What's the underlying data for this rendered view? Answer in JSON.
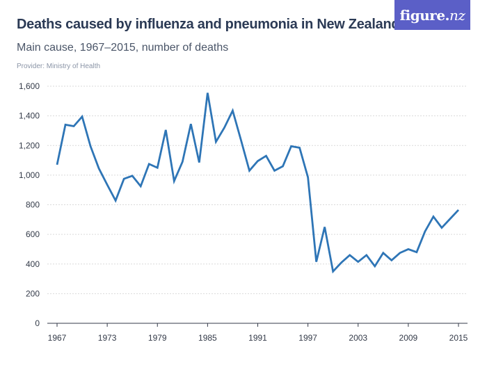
{
  "header": {
    "title": "Deaths caused by influenza and pneumonia in New Zealand",
    "subtitle": "Main cause, 1967–2015, number of deaths",
    "provider": "Provider: Ministry of Health"
  },
  "logo": {
    "text_main": "figure.",
    "text_tail": "nz",
    "background": "#5b5fc7"
  },
  "colors": {
    "line": "#2e75b6",
    "grid": "#d9d9d9",
    "axis": "#333a48"
  },
  "chart_data": {
    "type": "line",
    "title": "Deaths caused by influenza and pneumonia in New Zealand",
    "subtitle": "Main cause, 1967–2015, number of deaths",
    "xlabel": "",
    "ylabel": "",
    "ylim": [
      0,
      1600
    ],
    "xlim": [
      1967,
      2015
    ],
    "yticks": [
      0,
      200,
      400,
      600,
      800,
      1000,
      1200,
      1400,
      1600
    ],
    "ytick_labels": [
      "0",
      "200",
      "400",
      "600",
      "800",
      "1,000",
      "1,200",
      "1,400",
      "1,600"
    ],
    "xticks": [
      1967,
      1973,
      1979,
      1985,
      1991,
      1997,
      2003,
      2009,
      2015
    ],
    "xtick_labels": [
      "1967",
      "1973",
      "1979",
      "1985",
      "1991",
      "1997",
      "2003",
      "2009",
      "2015"
    ],
    "grid": true,
    "legend": "none",
    "x": [
      1967,
      1968,
      1969,
      1970,
      1971,
      1972,
      1973,
      1974,
      1975,
      1976,
      1977,
      1978,
      1979,
      1980,
      1981,
      1982,
      1983,
      1984,
      1985,
      1986,
      1987,
      1988,
      1989,
      1990,
      1991,
      1992,
      1993,
      1994,
      1995,
      1996,
      1997,
      1998,
      1999,
      2000,
      2001,
      2002,
      2003,
      2004,
      2005,
      2006,
      2007,
      2008,
      2009,
      2010,
      2011,
      2012,
      2013,
      2014,
      2015
    ],
    "series": [
      {
        "values": [
          1070,
          1340,
          1330,
          1395,
          1195,
          1045,
          935,
          828,
          975,
          995,
          925,
          1075,
          1050,
          1305,
          960,
          1090,
          1345,
          1085,
          1555,
          1225,
          1320,
          1435,
          1235,
          1030,
          1095,
          1130,
          1030,
          1060,
          1195,
          1185,
          985,
          415,
          650,
          350,
          410,
          460,
          415,
          460,
          385,
          475,
          425,
          475,
          500,
          480,
          620,
          720,
          645,
          705,
          765
        ]
      }
    ]
  }
}
